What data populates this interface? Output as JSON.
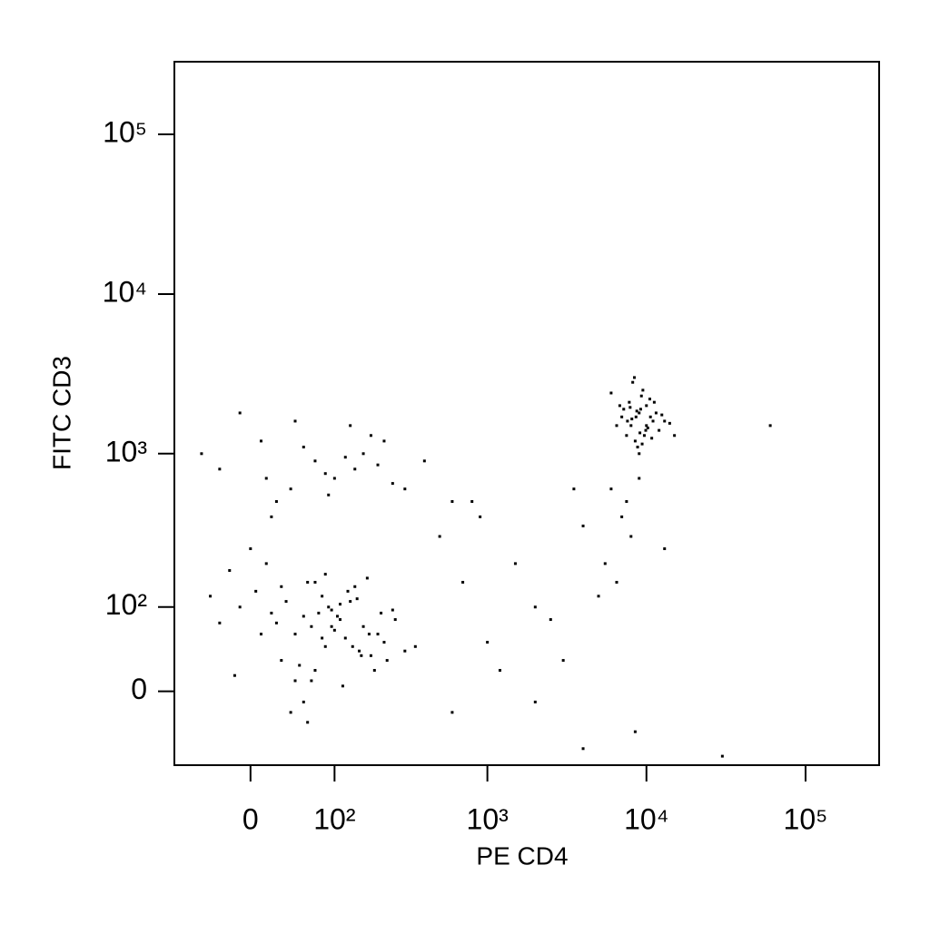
{
  "chart_data": {
    "type": "scatter",
    "x_label": "PE CD4",
    "y_label": "FITC CD3",
    "xscale": "biexponential",
    "yscale": "biexponential",
    "xlim": [
      -87,
      290000
    ],
    "ylim": [
      -83,
      285000
    ],
    "xticks": [
      0,
      {
        "value": 100,
        "label": "10²"
      },
      {
        "value": 1000,
        "label": "10³"
      },
      {
        "value": 10000,
        "label": "10⁴"
      },
      {
        "value": 100000,
        "label": "10⁵"
      }
    ],
    "yticks": [
      0,
      {
        "value": 100,
        "label": "10²"
      },
      {
        "value": 1000,
        "label": "10³"
      },
      {
        "value": 10000,
        "label": "10⁴"
      },
      {
        "value": 100000,
        "label": "10⁵"
      }
    ],
    "color": "#000000",
    "x": [
      20,
      45,
      80,
      110,
      150,
      60,
      -10,
      30,
      95,
      130,
      200,
      70,
      5,
      55,
      120,
      170,
      40,
      85,
      250,
      -30,
      15,
      65,
      100,
      140,
      180,
      35,
      75,
      115,
      160,
      220,
      -20,
      50,
      90,
      125,
      300,
      10,
      60,
      105,
      145,
      190,
      25,
      70,
      135,
      210,
      -40,
      45,
      80,
      155,
      260,
      0,
      55,
      95,
      175,
      230,
      30,
      65,
      110,
      350,
      -15,
      85,
      -30,
      10,
      40,
      70,
      100,
      130,
      160,
      200,
      250,
      -10,
      25,
      55,
      85,
      120,
      180,
      300,
      -50,
      15,
      45,
      90,
      140,
      220,
      400,
      600,
      20,
      8000,
      9000,
      7500,
      10000,
      11000,
      8500,
      9500,
      7000,
      12000,
      8800,
      9200,
      10500,
      6500,
      13000,
      8200,
      9700,
      7800,
      11500,
      9000,
      8600,
      10200,
      7200,
      14000,
      9300,
      8100,
      10800,
      6800,
      9900,
      12500,
      8400,
      9100,
      7600,
      11200,
      8700,
      10000,
      6000,
      15000,
      9400,
      7900,
      10600,
      6000,
      7000,
      8000,
      5500,
      9000,
      6500,
      7500,
      13000,
      5000,
      8500,
      4000,
      60000,
      500,
      700,
      1000,
      1500,
      2000,
      3000,
      800,
      1200,
      2500,
      3500,
      600,
      900,
      4000,
      30000,
      2000
    ],
    "values": [
      90,
      60,
      120,
      80,
      40,
      150,
      100,
      30,
      70,
      110,
      60,
      20,
      130,
      85,
      55,
      160,
      -20,
      45,
      95,
      75,
      200,
      10,
      65,
      140,
      35,
      110,
      90,
      5,
      70,
      50,
      180,
      25,
      100,
      130,
      40,
      60,
      -30,
      85,
      115,
      20,
      75,
      150,
      45,
      90,
      120,
      10,
      55,
      35,
      80,
      250,
      -10,
      95,
      60,
      30,
      140,
      70,
      105,
      45,
      15,
      170,
      800,
      1200,
      600,
      900,
      700,
      1500,
      1000,
      850,
      650,
      1800,
      500,
      1100,
      750,
      950,
      1300,
      600,
      1000,
      700,
      1600,
      550,
      800,
      1200,
      900,
      500,
      400,
      1500,
      1800,
      1300,
      2000,
      1600,
      1200,
      2500,
      1700,
      1400,
      1100,
      1900,
      2200,
      1500,
      1600,
      2800,
      1300,
      2100,
      1800,
      1000,
      1700,
      1450,
      1900,
      1550,
      2300,
      1650,
      1250,
      2000,
      1400,
      1750,
      3000,
      1350,
      1600,
      2100,
      1850,
      1500,
      2400,
      1300,
      1150,
      1950,
      1700,
      600,
      400,
      300,
      200,
      700,
      150,
      500,
      250,
      120,
      -40,
      350,
      1500,
      300,
      150,
      50,
      200,
      100,
      30,
      500,
      20,
      80,
      600,
      -20,
      400,
      -60,
      -70,
      -10
    ]
  }
}
